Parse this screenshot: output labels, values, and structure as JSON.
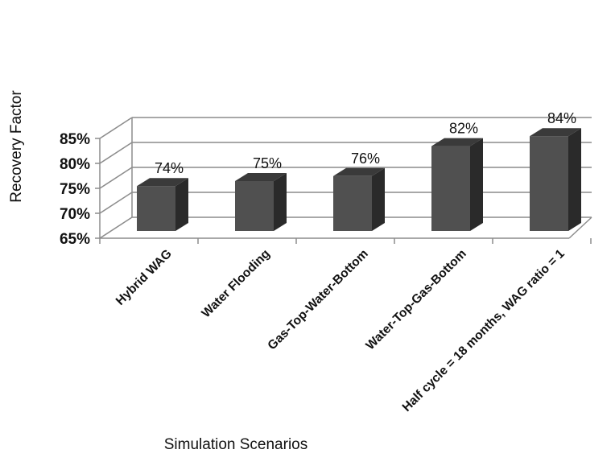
{
  "chart_data": {
    "type": "bar",
    "categories": [
      "Hybrid WAG",
      "Water Flooding",
      "Gas-Top-Water-Bottom",
      "Water-Top-Gas-Bottom",
      "Half cycle = 18 months, WAG ratio = 1"
    ],
    "values": [
      74,
      75,
      76,
      82,
      84
    ],
    "data_labels": [
      "74%",
      "75%",
      "76%",
      "82%",
      "84%"
    ],
    "ylabel": "Recovery Factor",
    "xlabel": "Simulation Scenarios",
    "ylim": [
      65,
      85
    ],
    "yticks": [
      65,
      70,
      75,
      80,
      85
    ],
    "ytick_labels": [
      "65%",
      "70%",
      "75%",
      "80%",
      "85%"
    ],
    "grid": true,
    "legend": "none",
    "style": "3d-column",
    "colors": {
      "bar_front": "#505050",
      "bar_side": "#2a2a2a",
      "bar_top": "#3a3a3a",
      "grid": "#8c8c8c"
    }
  }
}
